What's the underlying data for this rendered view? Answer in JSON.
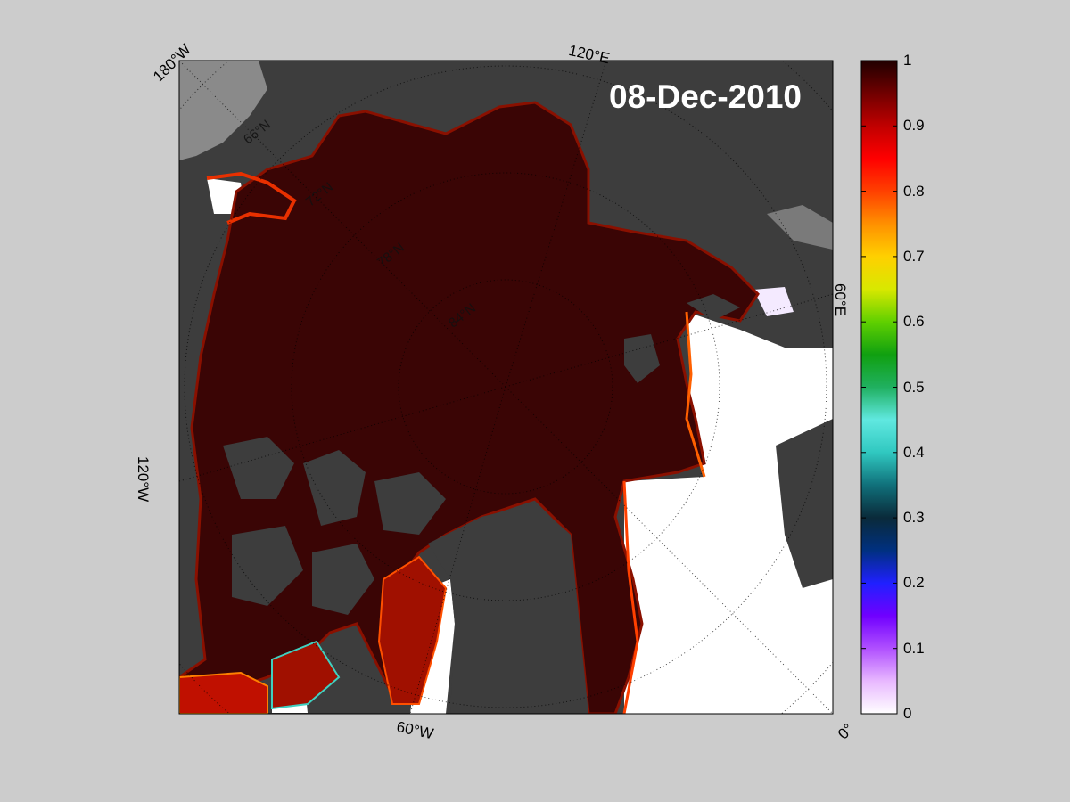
{
  "map": {
    "date": "08-Dec-2010",
    "colors": {
      "figure_bg": "#cccccc",
      "land": "#3d3d3d",
      "land_grey": "#8a8a8a",
      "full_ice": "#3a0505",
      "open_water": "#ffffff"
    },
    "longitude_labels": [
      "180°W",
      "120°E",
      "60°E",
      "0°",
      "60°W",
      "120°W"
    ],
    "latitude_labels": [
      "66°N",
      "72°N",
      "78°N",
      "84°N"
    ]
  },
  "colorbar": {
    "range": [
      0,
      1
    ],
    "ticks": [
      "1",
      "0.9",
      "0.8",
      "0.7",
      "0.6",
      "0.5",
      "0.4",
      "0.3",
      "0.2",
      "0.1",
      "0"
    ],
    "palette": [
      "#ffffff",
      "#e8b8ff",
      "#b050ff",
      "#7000ff",
      "#2020ff",
      "#003080",
      "#0a2a3a",
      "#10707a",
      "#30c8c0",
      "#60e8e0",
      "#20b060",
      "#10a010",
      "#60d000",
      "#d8e800",
      "#ffd000",
      "#ff9000",
      "#ff4000",
      "#ff0000",
      "#c00000",
      "#700000",
      "#200000"
    ]
  }
}
